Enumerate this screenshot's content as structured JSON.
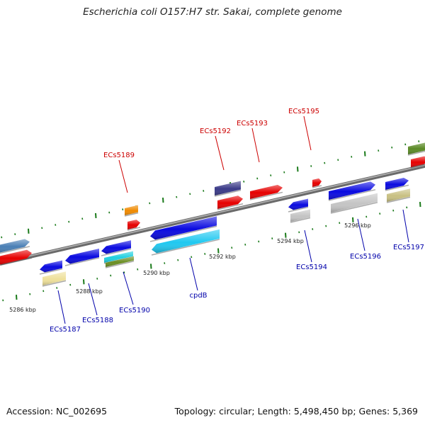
{
  "title": "Escherichia coli O157:H7 str. Sakai, complete genome",
  "footer": {
    "accession": "Accession: NC_002695",
    "summary": "Topology: circular; Length: 5,498,450 bp; Genes: 5,369"
  },
  "colors": {
    "backbone": "#808080",
    "tick": "#1a7a1a",
    "forward_label": "#cc0000",
    "reverse_label": "#0000aa"
  },
  "scale_labels": [
    "5286 kbp",
    "5288 kbp",
    "5290 kbp",
    "5292 kbp",
    "5294 kbp",
    "5296 kbp"
  ],
  "forward_genes": [
    "ECs5189",
    "ECs5192",
    "ECs5193",
    "ECs5195"
  ],
  "reverse_genes": [
    "ECs5187",
    "ECs5188",
    "ECs5190",
    "cpdB",
    "ECs5194",
    "ECs5196",
    "ECs5197"
  ]
}
